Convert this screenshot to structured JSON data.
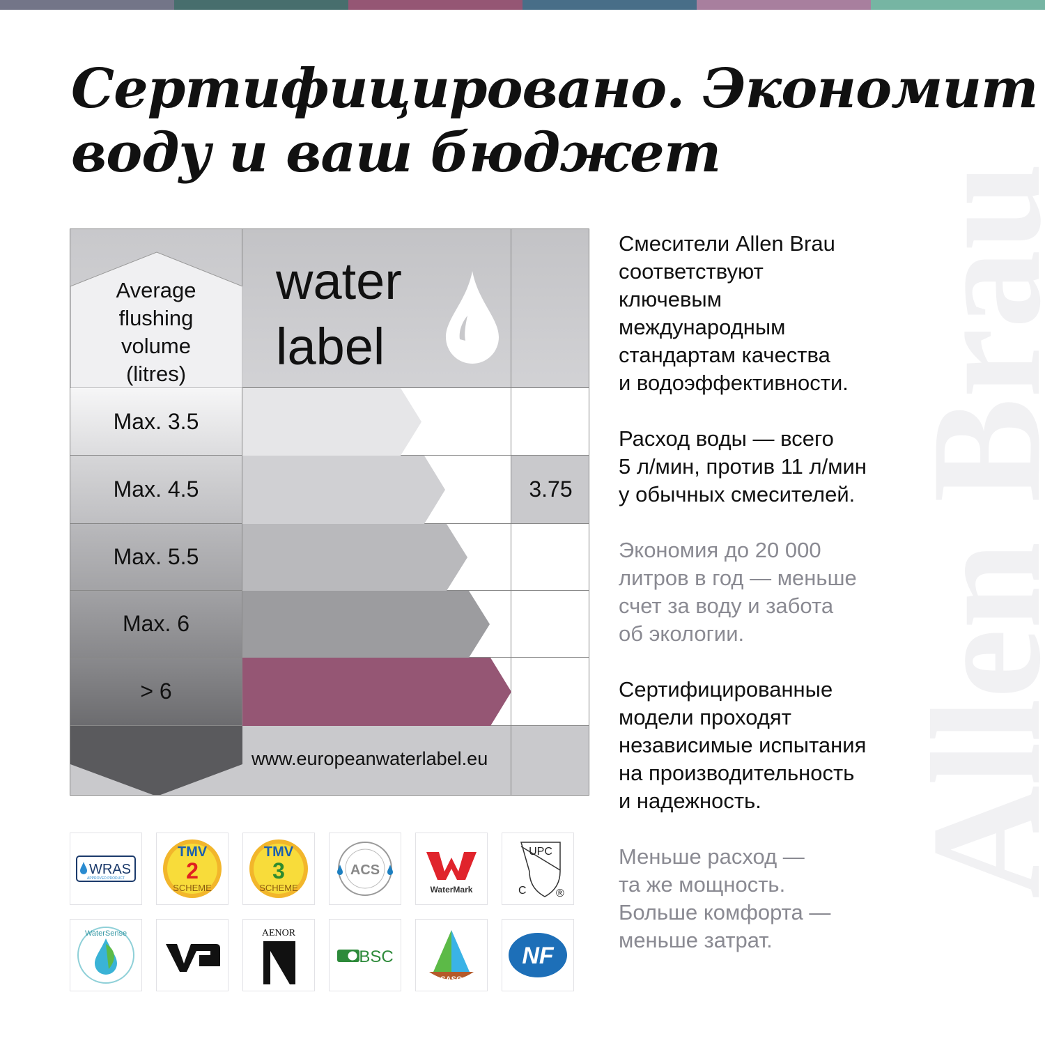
{
  "stripe_colors": [
    "#737588",
    "#476e6d",
    "#955674",
    "#486e88",
    "#a87f9e",
    "#76b5a3"
  ],
  "title": {
    "line1": "Сертифицировано. Экономит",
    "line2": "воду и ваш бюджет"
  },
  "watermark": "Allen Brau",
  "water_label": {
    "header_left": [
      "Average",
      "flushing",
      "volume",
      "(litres)"
    ],
    "brand_line1": "water",
    "brand_line2": "label",
    "rows": [
      {
        "label": "Max. 3.5",
        "value": "",
        "color": "#e6e6e8"
      },
      {
        "label": "Max. 4.5",
        "value": "3.75",
        "color": "#d0d0d3"
      },
      {
        "label": "Max. 5.5",
        "value": "",
        "color": "#b9b9bc"
      },
      {
        "label": "Max. 6",
        "value": "",
        "color": "#9c9c9f"
      },
      {
        "label": "> 6",
        "value": "",
        "color": "#955674"
      }
    ],
    "url": "www.europeanwaterlabel.eu"
  },
  "paragraphs": [
    {
      "text": "Смесители Allen Brau соответствуют ключевым международным стандартам качества и водоэффективности.",
      "lines": [
        "Смесители Allen Brau",
        "соответствуют",
        "ключевым",
        "международным",
        "стандартам качества",
        "и водоэффективности."
      ]
    },
    {
      "lines": [
        "Расход воды — всего",
        "5 л/мин, против 11 л/мин",
        "у обычных смесителей."
      ]
    },
    {
      "lines": [
        "Экономия до 20 000",
        "литров в год — меньше",
        "счет за воду и забота",
        "об экологии."
      ]
    },
    {
      "lines": [
        "Сертифицированные",
        "модели проходят",
        "независимые испытания",
        "на производительность",
        "и надежность."
      ]
    },
    {
      "lines": [
        "Меньше расход —",
        "та же мощность.",
        "Больше комфорта —",
        "меньше затрат."
      ]
    }
  ],
  "logos": [
    "WRAS",
    "TMV 2 SCHEME",
    "TMV 3 SCHEME",
    "ACS",
    "WaterMark",
    "UPC",
    "WaterSense",
    "VA",
    "AENOR",
    "BSC",
    "SASO",
    "NF"
  ],
  "logo_text": {
    "wras": "WRAS",
    "wras_sub": "APPROVED PRODUCT",
    "tmv": "TMV",
    "scheme": "SCHEME",
    "two": "2",
    "three": "3",
    "acs": "ACS",
    "watermark": "WaterMark",
    "upc": "UPC",
    "c": "C",
    "r": "®",
    "watersense": "WaterSense",
    "aenor": "AENOR",
    "bsc": "BSC",
    "saso": "SASO",
    "nf": "NF"
  }
}
